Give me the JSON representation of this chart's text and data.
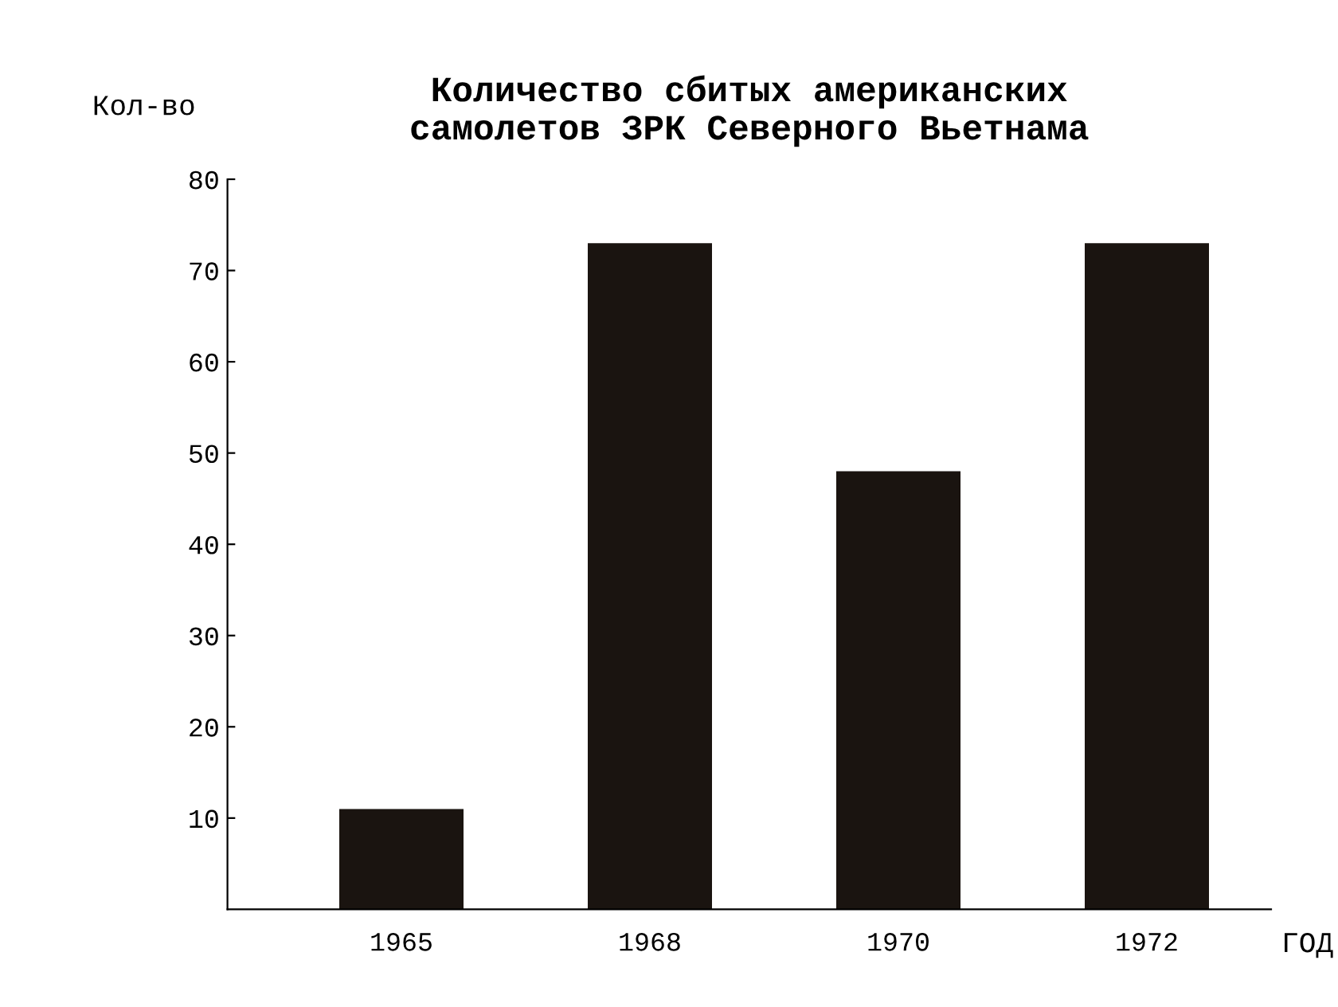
{
  "chart_data": {
    "type": "bar",
    "title": "Количество сбитых американских\nсамолетов ЗРК Северного Вьетнама",
    "ylabel": "Кол-во",
    "xlabel": "ГОД",
    "categories": [
      "1965",
      "1968",
      "1970",
      "1972"
    ],
    "values": [
      11,
      73,
      48,
      73
    ],
    "color": "#1a1410",
    "ylim": [
      0,
      80
    ],
    "yticks": [
      10,
      20,
      30,
      40,
      50,
      60,
      70,
      80
    ],
    "grid": false
  }
}
